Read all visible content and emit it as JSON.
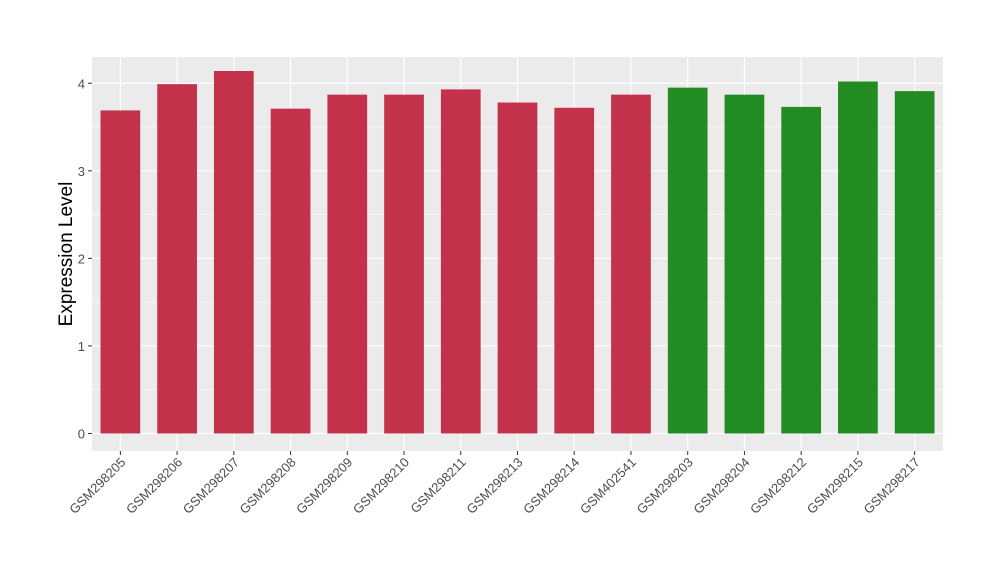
{
  "chart_data": {
    "type": "bar",
    "title": "",
    "xlabel": "",
    "ylabel": "Expression Level",
    "ylim": [
      -0.2,
      4.3
    ],
    "yticks": [
      0,
      1,
      2,
      3,
      4
    ],
    "grid": true,
    "categories": [
      "GSM298205",
      "GSM298206",
      "GSM298207",
      "GSM298208",
      "GSM298209",
      "GSM298210",
      "GSM298211",
      "GSM298213",
      "GSM298214",
      "GSM402541",
      "GSM298203",
      "GSM298204",
      "GSM298212",
      "GSM298215",
      "GSM298217"
    ],
    "values": [
      3.69,
      3.99,
      4.14,
      3.71,
      3.87,
      3.87,
      3.93,
      3.78,
      3.72,
      3.87,
      3.95,
      3.87,
      3.73,
      4.02,
      3.91
    ],
    "groups": [
      0,
      0,
      0,
      0,
      0,
      0,
      0,
      0,
      0,
      0,
      1,
      1,
      1,
      1,
      1
    ],
    "colors": [
      "#c3314a",
      "#228b22"
    ],
    "panel_background": "#ebebeb"
  }
}
